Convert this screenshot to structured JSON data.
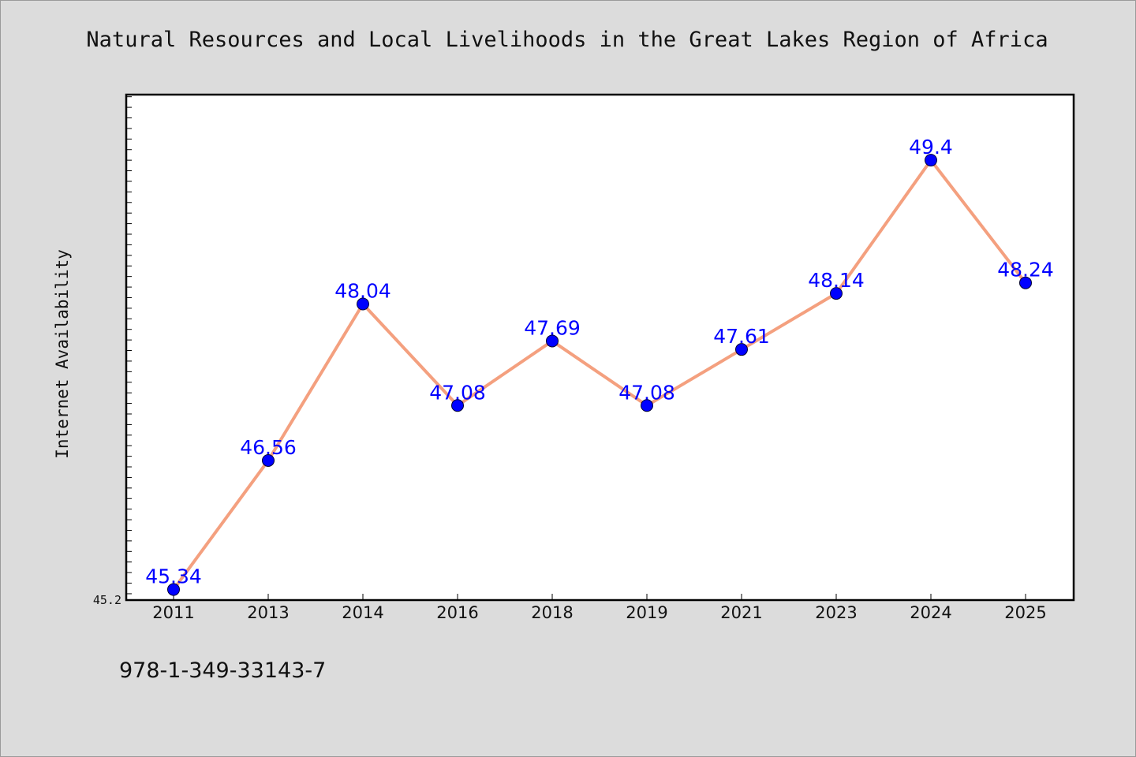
{
  "chart_data": {
    "type": "line",
    "title": "Natural Resources and Local Livelihoods in the Great Lakes Region of Africa",
    "xlabel": "",
    "ylabel": "Internet Availability",
    "categories": [
      "2011",
      "2013",
      "2014",
      "2016",
      "2018",
      "2019",
      "2021",
      "2023",
      "2024",
      "2025"
    ],
    "series": [
      {
        "values": [
          45.34,
          46.56,
          48.04,
          47.08,
          47.69,
          47.08,
          47.61,
          48.14,
          49.4,
          48.24
        ],
        "data_labels": [
          "45.34",
          "46.56",
          "48.04",
          "47.08",
          "47.69",
          "47.08",
          "47.61",
          "48.14",
          "49.4",
          "48.24"
        ]
      }
    ],
    "ylim": [
      45.24,
      50.02
    ],
    "y_tick_labels": [
      "45.2"
    ],
    "grid": false,
    "colors": {
      "line": "#f4a07f",
      "marker": "#0000ff",
      "data_label": "#0000ff",
      "background": "#dcdcdc",
      "plot_background": "#ffffff"
    }
  },
  "footnote": "978-1-349-33143-7"
}
